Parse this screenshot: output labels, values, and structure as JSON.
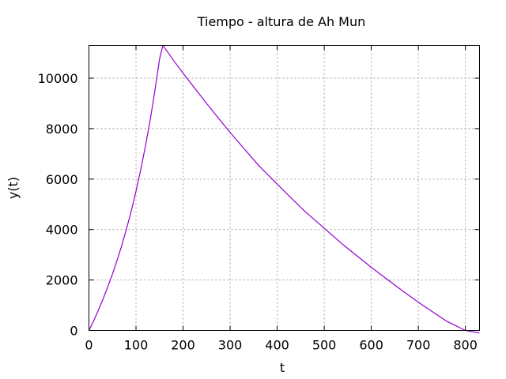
{
  "chart_data": {
    "type": "line",
    "title": "Tiempo - altura de Ah Mun",
    "xlabel": "t",
    "ylabel": "y(t)",
    "xlim": [
      0,
      830
    ],
    "ylim": [
      0,
      11300
    ],
    "grid": true,
    "xticks": [
      0,
      100,
      200,
      300,
      400,
      500,
      600,
      700,
      800
    ],
    "yticks": [
      0,
      2000,
      4000,
      6000,
      8000,
      10000
    ],
    "series": [
      {
        "color": "#9400d3",
        "x": [
          0,
          10,
          20,
          30,
          40,
          50,
          60,
          70,
          80,
          90,
          100,
          110,
          120,
          130,
          140,
          150,
          157,
          160,
          180,
          200,
          220,
          250,
          280,
          300,
          330,
          360,
          400,
          430,
          460,
          500,
          540,
          580,
          600,
          630,
          660,
          700,
          730,
          760,
          800,
          830
        ],
        "y": [
          0,
          380,
          800,
          1250,
          1730,
          2240,
          2790,
          3390,
          4040,
          4750,
          5520,
          6370,
          7300,
          8330,
          9480,
          10760,
          11300,
          11230,
          10700,
          10200,
          9720,
          9000,
          8300,
          7850,
          7200,
          6550,
          5800,
          5250,
          4700,
          4050,
          3400,
          2800,
          2500,
          2080,
          1660,
          1120,
          740,
          370,
          0,
          -100
        ]
      }
    ]
  }
}
